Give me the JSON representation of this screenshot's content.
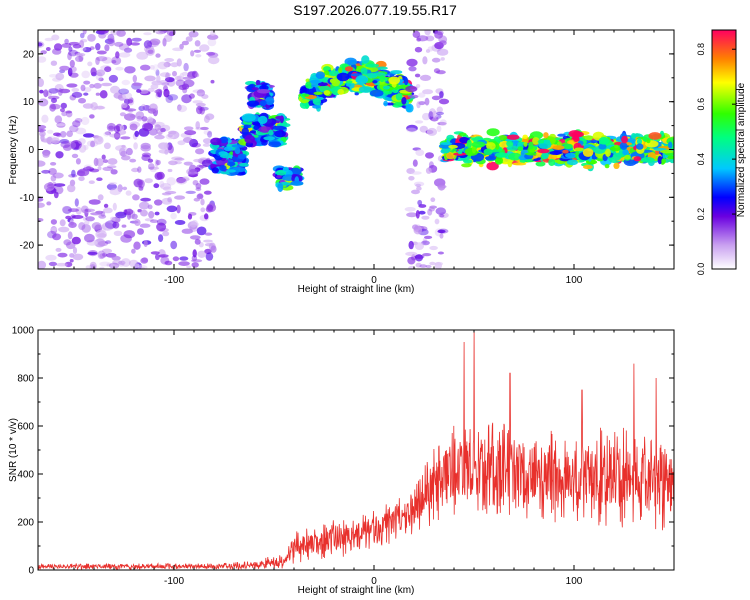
{
  "figure": {
    "title": "S197.2026.077.19.55.R17"
  },
  "chart_data": [
    {
      "type": "heatmap",
      "xlabel": "Height of straight line (km)",
      "ylabel": "Frequency (Hz)",
      "xlim": [
        -168,
        150
      ],
      "ylim": [
        -25,
        25
      ],
      "xticks": [
        -100,
        0,
        100
      ],
      "yticks": [
        -20,
        -10,
        0,
        10,
        20
      ],
      "colorbar": {
        "label": "Normalized spectral amplitude",
        "range": [
          0.0,
          0.87
        ],
        "ticks": [
          "0.0",
          "0.2",
          "0.4",
          "0.6",
          "0.8"
        ]
      },
      "features": [
        {
          "x_range": [
            -168,
            -80
          ],
          "y_range": [
            -25,
            25
          ],
          "level": 0.1,
          "kind": "scattered noise"
        },
        {
          "x_range": [
            -80,
            -65
          ],
          "y_range": [
            -5,
            2
          ],
          "level": 0.3,
          "kind": "blob"
        },
        {
          "x_range": [
            -65,
            -45
          ],
          "y_range": [
            1,
            7
          ],
          "level": 0.35,
          "kind": "blob"
        },
        {
          "x_range": [
            -62,
            -52
          ],
          "y_range": [
            9,
            14
          ],
          "level": 0.3,
          "kind": "blob"
        },
        {
          "x_range": [
            -48,
            -38
          ],
          "y_range": [
            -8,
            -4
          ],
          "level": 0.3,
          "kind": "blob"
        },
        {
          "x_range": [
            -35,
            18
          ],
          "y_range": [
            9,
            18
          ],
          "level": 0.45,
          "peak_frequency": 16,
          "kind": "band"
        },
        {
          "x_range": [
            18,
            35
          ],
          "y_range": [
            -25,
            25
          ],
          "level": 0.1,
          "kind": "striated noise"
        },
        {
          "x_range": [
            35,
            150
          ],
          "y_range": [
            -4,
            4
          ],
          "level": 0.5,
          "peak_frequency": 0,
          "kind": "band"
        }
      ]
    },
    {
      "type": "line",
      "xlabel": "Height of straight line (km)",
      "ylabel": "SNR (10 * v/v)",
      "xlim": [
        -168,
        150
      ],
      "ylim": [
        0,
        1000
      ],
      "xticks": [
        -100,
        0,
        100
      ],
      "yticks": [
        0,
        200,
        400,
        600,
        800,
        1000
      ],
      "color": "#e8302c",
      "envelope": [
        {
          "x": -168,
          "mean": 15,
          "amplitude": 12
        },
        {
          "x": -80,
          "mean": 15,
          "amplitude": 12
        },
        {
          "x": -60,
          "mean": 20,
          "amplitude": 18
        },
        {
          "x": -45,
          "mean": 40,
          "amplitude": 35
        },
        {
          "x": -38,
          "mean": 100,
          "amplitude": 70
        },
        {
          "x": -30,
          "mean": 110,
          "amplitude": 70
        },
        {
          "x": -20,
          "mean": 130,
          "amplitude": 80
        },
        {
          "x": -10,
          "mean": 140,
          "amplitude": 80
        },
        {
          "x": 0,
          "mean": 170,
          "amplitude": 80
        },
        {
          "x": 10,
          "mean": 200,
          "amplitude": 90
        },
        {
          "x": 20,
          "mean": 260,
          "amplitude": 110
        },
        {
          "x": 30,
          "mean": 350,
          "amplitude": 160
        },
        {
          "x": 40,
          "mean": 420,
          "amplitude": 190
        },
        {
          "x": 60,
          "mean": 430,
          "amplitude": 200
        },
        {
          "x": 80,
          "mean": 400,
          "amplitude": 190
        },
        {
          "x": 100,
          "mean": 380,
          "amplitude": 200
        },
        {
          "x": 120,
          "mean": 390,
          "amplitude": 210
        },
        {
          "x": 150,
          "mean": 380,
          "amplitude": 220
        }
      ],
      "peaks": [
        {
          "x": 50,
          "y": 1000
        },
        {
          "x": 45,
          "y": 950
        },
        {
          "x": 68,
          "y": 820
        },
        {
          "x": 130,
          "y": 860
        },
        {
          "x": 104,
          "y": 750
        },
        {
          "x": 141,
          "y": 800
        }
      ]
    }
  ]
}
